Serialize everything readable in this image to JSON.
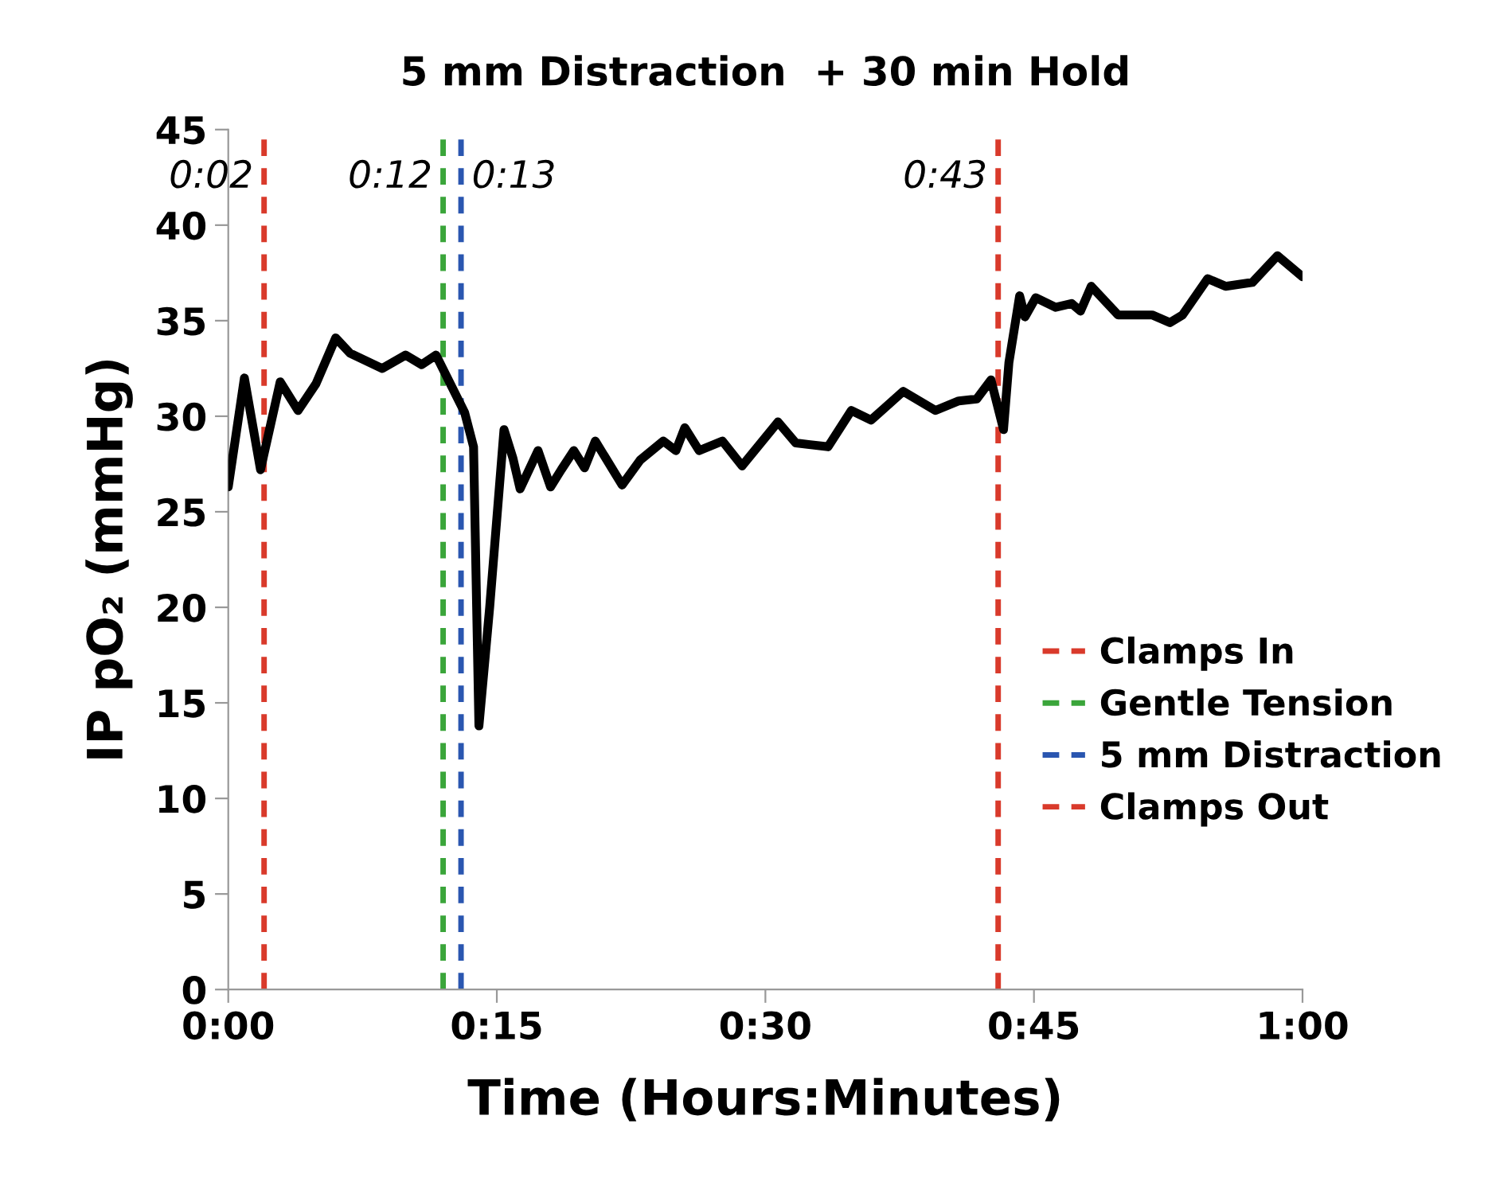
{
  "chart_data": {
    "type": "line",
    "title": "5 mm Distraction  + 30 min Hold",
    "xlabel": "Time (Hours:Minutes)",
    "ylabel": "IP pO₂ (mmHg)",
    "x": [
      0,
      0.9,
      1.8,
      2.9,
      3.9,
      4.9,
      6.0,
      6.8,
      8.6,
      9.9,
      10.8,
      11.6,
      13.2,
      13.7,
      14.0,
      14.6,
      15.4,
      15.9,
      16.3,
      17.3,
      18.0,
      18.6,
      19.3,
      19.9,
      20.5,
      22.0,
      23.0,
      24.3,
      25.0,
      25.5,
      26.3,
      27.6,
      28.7,
      30.7,
      31.7,
      33.5,
      34.8,
      35.9,
      37.7,
      39.5,
      40.8,
      41.8,
      42.6,
      43.3,
      43.6,
      44.2,
      44.5,
      45.1,
      46.2,
      47.1,
      47.6,
      48.2,
      49.7,
      51.6,
      52.6,
      53.3,
      54.7,
      55.7,
      57.2,
      58.6,
      60
    ],
    "series": [
      {
        "name": "Clamps In",
        "color": "#d93a2b",
        "line_style": "dashed",
        "x": [
          2,
          2
        ],
        "values": [
          0,
          45
        ]
      },
      {
        "name": "Gentle Tension",
        "color": "#3aa53a",
        "line_style": "dashed",
        "x": [
          12,
          12
        ],
        "values": [
          0,
          45
        ]
      },
      {
        "name": "5 mm Distraction",
        "color": "#2a56b0",
        "line_style": "dashed",
        "x": [
          13,
          13
        ],
        "values": [
          0,
          45
        ]
      },
      {
        "name": "Clamps Out",
        "color": "#d93a2b",
        "line_style": "dashed",
        "x": [
          43,
          43
        ],
        "values": [
          0,
          45
        ]
      },
      {
        "color": "#000000",
        "values": [
          26.3,
          32,
          27.2,
          31.8,
          30.3,
          31.7,
          34.1,
          33.3,
          32.5,
          33.2,
          32.7,
          33.2,
          30.2,
          28.4,
          13.8,
          20,
          29.3,
          27.8,
          26.2,
          28.2,
          26.3,
          27.2,
          28.2,
          27.3,
          28.7,
          26.4,
          27.7,
          28.7,
          28.2,
          29.4,
          28.2,
          28.7,
          27.4,
          29.7,
          28.6,
          28.4,
          30.3,
          29.8,
          31.3,
          30.3,
          30.8,
          30.9,
          31.9,
          29.3,
          32.8,
          36.3,
          35.2,
          36.2,
          35.7,
          35.9,
          35.5,
          36.8,
          35.3,
          35.3,
          34.9,
          35.3,
          37.2,
          36.8,
          37.0,
          38.4,
          37.3
        ]
      }
    ],
    "xlim": [
      0,
      60
    ],
    "xticks": [
      {
        "value": 0,
        "label": "0:00"
      },
      {
        "value": 15,
        "label": "0:15"
      },
      {
        "value": 30,
        "label": "0:30"
      },
      {
        "value": 45,
        "label": "0:45"
      },
      {
        "value": 60,
        "label": "1:00"
      }
    ],
    "ylim": [
      0,
      45
    ],
    "yticks": [
      0,
      5,
      10,
      15,
      20,
      25,
      30,
      35,
      40,
      45
    ],
    "annotations": [
      {
        "text": "0:02",
        "x": 2,
        "y": 42.5
      },
      {
        "text": "0:12",
        "x": 12,
        "y": 42.5
      },
      {
        "text": "0:13",
        "x": 13,
        "y": 42.5
      },
      {
        "text": "0:43",
        "x": 43,
        "y": 42.5
      }
    ],
    "grid": false,
    "legend": "right",
    "line_style": "solid",
    "marker": "none"
  }
}
